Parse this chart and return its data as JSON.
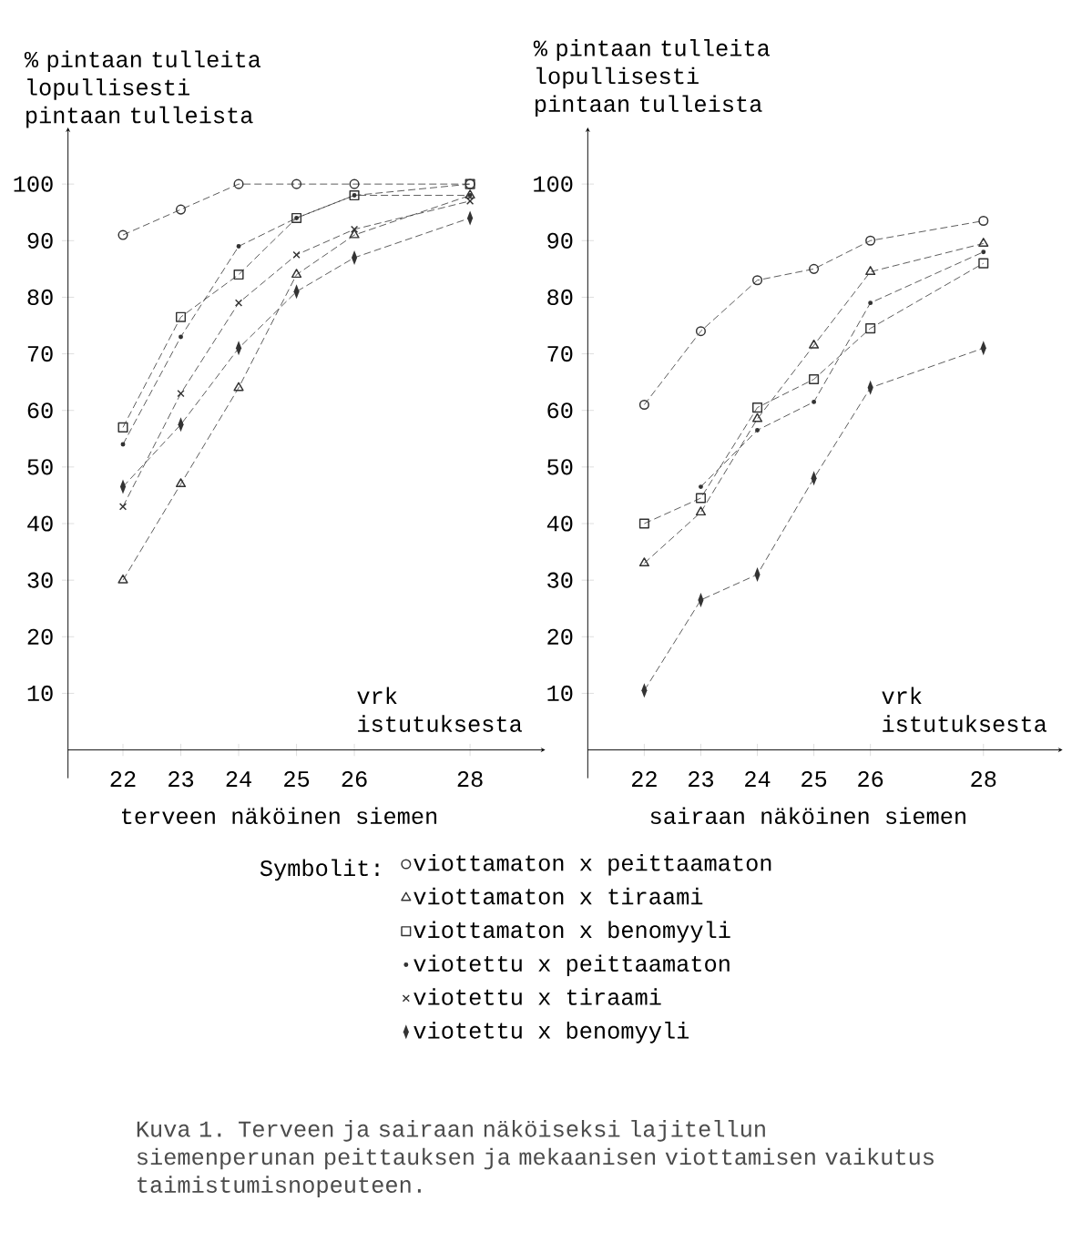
{
  "chart_data": [
    {
      "type": "line",
      "title": "terveen näköinen siemen",
      "xlabel": "vrk istutuksesta",
      "ylabel": "% pintaan tulleita lopullisesti pintaan tulleista",
      "legend_title": "Symbolit:",
      "legend": "bottom",
      "line_style": "dashed",
      "x": [
        22,
        23,
        24,
        25,
        26,
        28
      ],
      "xlim": [
        21.05,
        29.3
      ],
      "ylim": [
        -5,
        110
      ],
      "xticks": [
        22,
        23,
        24,
        25,
        26,
        28
      ],
      "yticks": [
        10,
        20,
        30,
        40,
        50,
        60,
        70,
        80,
        90,
        100
      ],
      "series": [
        {
          "name": "viottamaton x peittaamaton",
          "color": "#333333",
          "marker": "circle",
          "values": [
            91,
            95.5,
            100,
            100,
            100,
            100
          ]
        },
        {
          "name": "viottamaton x tiraami",
          "color": "#333333",
          "marker": "triangle",
          "values": [
            30,
            47,
            64,
            84,
            91,
            98
          ]
        },
        {
          "name": "viottamaton x benomyyli",
          "color": "#333333",
          "marker": "square",
          "values": [
            57,
            76.5,
            84,
            94,
            98,
            100
          ]
        },
        {
          "name": "viotettu x peittaamaton",
          "color": "#333333",
          "marker": "point",
          "values": [
            54,
            73,
            89,
            94,
            98,
            98
          ]
        },
        {
          "name": "viotettu x tiraami",
          "color": "#333333",
          "marker": "cross",
          "values": [
            43,
            63,
            79,
            87.5,
            92,
            97
          ]
        },
        {
          "name": "viotettu x benomyyli",
          "color": "#333333",
          "marker": "diamond",
          "values": [
            46.5,
            57.5,
            71,
            81,
            87,
            94
          ]
        }
      ],
      "annotations": [
        "Kuva 1. Terveen ja sairaan näköiseksi lajitellun siemenperunan peittauksen ja mekaanisen viottamisen vaikutus taimistumisnopeuteen."
      ]
    },
    {
      "type": "line",
      "title": "sairaan näköinen siemen",
      "xlabel": "vrk istutuksesta",
      "ylabel": "% pintaan tulleita lopullisesti pintaan tulleista",
      "line_style": "dashed",
      "x": [
        22,
        23,
        24,
        25,
        26,
        28
      ],
      "xlim": [
        21.0,
        29.4
      ],
      "ylim": [
        -5,
        110
      ],
      "xticks": [
        22,
        23,
        24,
        25,
        26,
        28
      ],
      "yticks": [
        10,
        20,
        30,
        40,
        50,
        60,
        70,
        80,
        90,
        100
      ],
      "series": [
        {
          "color": "#333333",
          "marker": "circle",
          "values": [
            61,
            74,
            83,
            85,
            90,
            93.5
          ]
        },
        {
          "color": "#333333",
          "marker": "triangle",
          "values": [
            33,
            42,
            58.5,
            71.5,
            84.5,
            89.5
          ]
        },
        {
          "color": "#333333",
          "marker": "square",
          "values": [
            40,
            44.5,
            60.5,
            65.5,
            74.5,
            86
          ]
        },
        {
          "color": "#333333",
          "marker": "point",
          "values": [
            null,
            46.5,
            56.5,
            61.5,
            79,
            88
          ]
        },
        {
          "color": "#333333",
          "marker": "diamond",
          "values": [
            10.5,
            26.5,
            31,
            48,
            64,
            71
          ]
        }
      ]
    }
  ]
}
